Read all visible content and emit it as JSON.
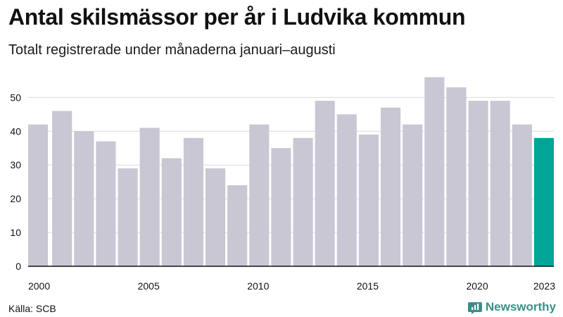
{
  "chart_data": {
    "type": "bar",
    "title": "Antal skilsmässor per år i Ludvika kommun",
    "subtitle": "Totalt registrerade under månaderna januari–augusti",
    "xlabel": "",
    "ylabel": "",
    "categories": [
      "2000",
      "2001",
      "2002",
      "2003",
      "2004",
      "2005",
      "2006",
      "2007",
      "2008",
      "2009",
      "2010",
      "2011",
      "2012",
      "2013",
      "2014",
      "2015",
      "2016",
      "2017",
      "2018",
      "2019",
      "2020",
      "2021",
      "2022",
      "2023"
    ],
    "values": [
      42,
      46,
      40,
      37,
      29,
      41,
      32,
      38,
      29,
      24,
      42,
      35,
      38,
      49,
      45,
      39,
      47,
      42,
      56,
      53,
      49,
      49,
      42,
      38
    ],
    "x_tick_labels": [
      "2000",
      "2005",
      "2010",
      "2015",
      "2020",
      "2023"
    ],
    "y_ticks": [
      0,
      10,
      20,
      30,
      40,
      50
    ],
    "ylim": [
      0,
      58
    ],
    "grid": true,
    "highlight_category": "2023",
    "colors": {
      "bar": "#c8c7d3",
      "highlight": "#00a598",
      "grid": "#d9d9d9"
    }
  },
  "footer": {
    "source": "Källa: SCB",
    "brand": "Newsworthy",
    "brand_icon": "bar-chart-logo-icon"
  }
}
